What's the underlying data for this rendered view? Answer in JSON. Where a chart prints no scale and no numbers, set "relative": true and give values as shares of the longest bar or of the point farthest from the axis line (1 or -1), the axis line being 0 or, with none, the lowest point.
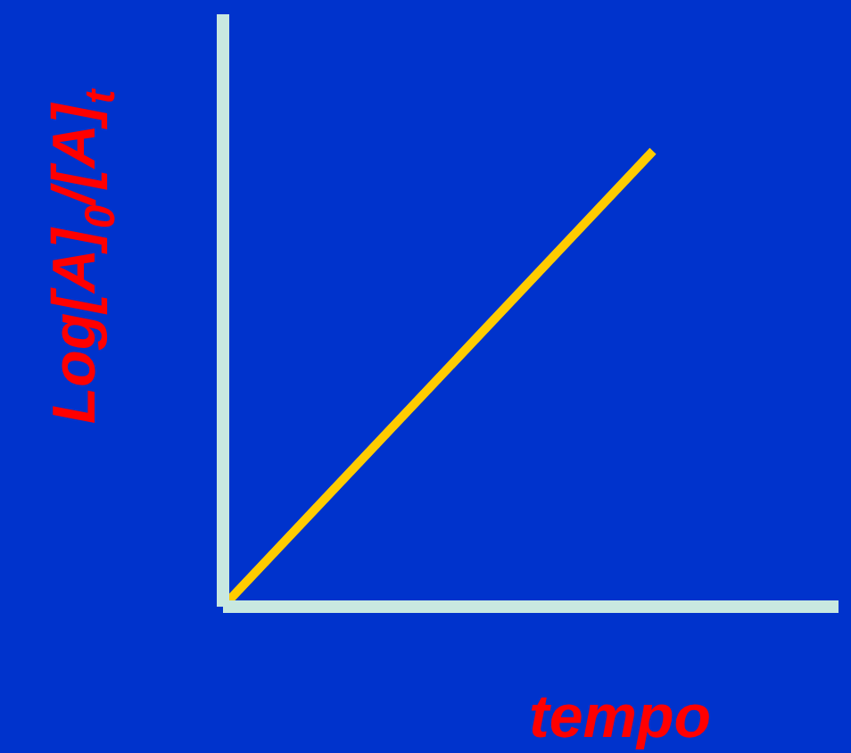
{
  "chart_data": {
    "type": "line",
    "xlabel": "tempo",
    "ylabel": "Log[A]$_{0}$/[A]$_{t}$",
    "relative": true,
    "categories": [
      null,
      null
    ],
    "marker": "none",
    "series": [
      {
        "color": "#ffcc00",
        "values": [
          0,
          1
        ]
      }
    ]
  }
}
